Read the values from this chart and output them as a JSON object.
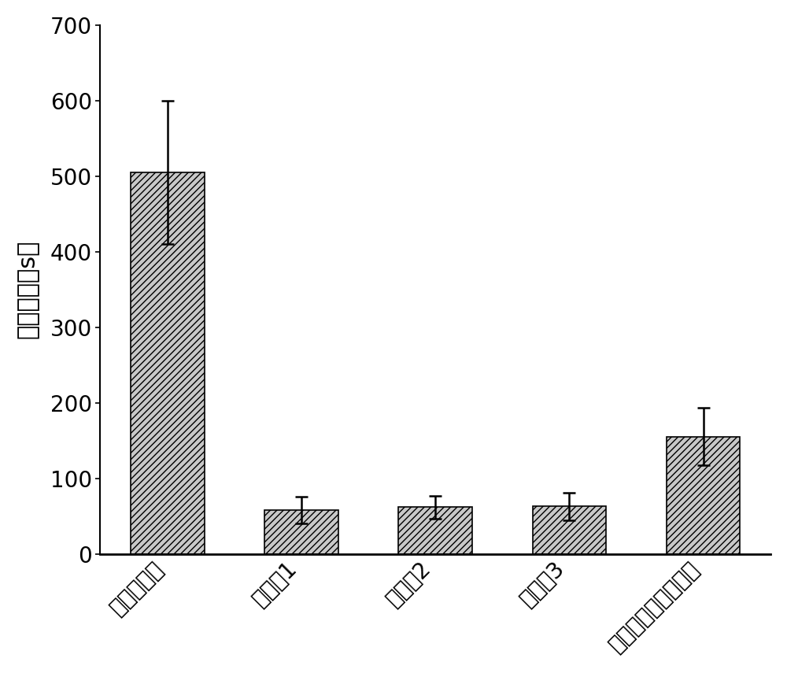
{
  "categories": [
    "空白对照组",
    "实施例1",
    "实施例2",
    "实施例3",
    "市售纤维蛋白粘合剂"
  ],
  "values": [
    505,
    58,
    62,
    63,
    155
  ],
  "errors": [
    95,
    18,
    15,
    18,
    38
  ],
  "ylabel": "出血时间（s）",
  "ylim": [
    0,
    700
  ],
  "yticks": [
    0,
    100,
    200,
    300,
    400,
    500,
    600,
    700
  ],
  "bar_color": "#c8c8c8",
  "bar_edgecolor": "#000000",
  "hatch": "////",
  "bar_width": 0.55,
  "label_fontsize": 22,
  "tick_fontsize": 20,
  "error_capsize": 6,
  "error_linewidth": 1.8,
  "background_color": "#ffffff"
}
